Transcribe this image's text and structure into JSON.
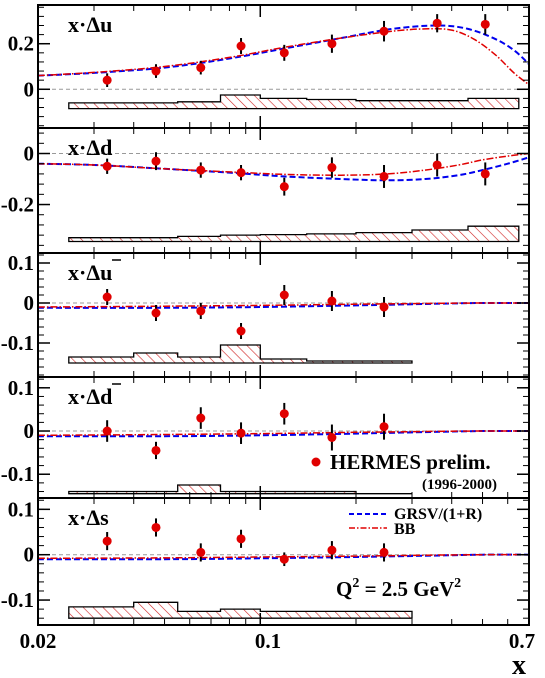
{
  "chart_data": {
    "type": "scatter",
    "x_scale": "log",
    "x_range": [
      0.02,
      0.7
    ],
    "x_ticks": [
      "0.02",
      "0.1",
      "0.7"
    ],
    "xlabel": "x",
    "legend": {
      "data_label": "HERMES prelim.",
      "data_sublabel": "(1996-2000)",
      "grsv_label": "GRSV/(1+R)",
      "bb_label": "BB"
    },
    "annotation": {
      "q2_prefix": "Q",
      "q2_exp": "2",
      "q2_mid": " = 2.5 GeV",
      "q2_exp2": "2"
    },
    "colors": {
      "data": "#e00000",
      "grsv": "#0000ee",
      "bb": "#e00000",
      "band_fill": "#d02020",
      "axis": "#000000"
    },
    "x_points": [
      0.033,
      0.047,
      0.065,
      0.087,
      0.119,
      0.168,
      0.245,
      0.36,
      0.51
    ],
    "panels": [
      {
        "label_main": "x·Δu",
        "label_bar": false,
        "ylim": [
          -0.17,
          0.37
        ],
        "yticks": [
          {
            "v": 0.2,
            "t": "0.2"
          },
          {
            "v": 0,
            "t": "0"
          }
        ],
        "y": [
          0.04,
          0.08,
          0.095,
          0.19,
          0.16,
          0.2,
          0.255,
          0.29,
          0.285
        ],
        "err": [
          0.03,
          0.03,
          0.03,
          0.035,
          0.035,
          0.04,
          0.045,
          0.04,
          0.045
        ],
        "grsv": [
          [
            0.02,
            0.06
          ],
          [
            0.03,
            0.072
          ],
          [
            0.05,
            0.095
          ],
          [
            0.08,
            0.135
          ],
          [
            0.12,
            0.18
          ],
          [
            0.18,
            0.225
          ],
          [
            0.26,
            0.265
          ],
          [
            0.36,
            0.28
          ],
          [
            0.45,
            0.265
          ],
          [
            0.55,
            0.22
          ],
          [
            0.63,
            0.17
          ],
          [
            0.7,
            0.11
          ]
        ],
        "bb": [
          [
            0.02,
            0.06
          ],
          [
            0.03,
            0.074
          ],
          [
            0.05,
            0.1
          ],
          [
            0.08,
            0.14
          ],
          [
            0.12,
            0.185
          ],
          [
            0.18,
            0.225
          ],
          [
            0.26,
            0.255
          ],
          [
            0.33,
            0.265
          ],
          [
            0.4,
            0.26
          ],
          [
            0.47,
            0.22
          ],
          [
            0.55,
            0.15
          ],
          [
            0.63,
            0.07
          ],
          [
            0.7,
            0.02
          ]
        ],
        "band": {
          "base": -0.085,
          "edges": [
            0.025,
            0.04,
            0.055,
            0.075,
            0.1,
            0.14,
            0.2,
            0.3,
            0.45,
            0.65
          ],
          "tops": [
            -0.06,
            -0.06,
            -0.055,
            -0.025,
            -0.04,
            -0.045,
            -0.05,
            -0.05,
            -0.04
          ]
        }
      },
      {
        "label_main": "x·Δd",
        "label_bar": false,
        "ylim": [
          -0.39,
          0.1
        ],
        "yticks": [
          {
            "v": 0,
            "t": "0"
          },
          {
            "v": -0.2,
            "t": "-0.2"
          }
        ],
        "y": [
          -0.05,
          -0.03,
          -0.065,
          -0.075,
          -0.13,
          -0.055,
          -0.09,
          -0.045,
          -0.08
        ],
        "err": [
          0.03,
          0.035,
          0.03,
          0.03,
          0.035,
          0.04,
          0.045,
          0.045,
          0.045
        ],
        "grsv": [
          [
            0.02,
            -0.04
          ],
          [
            0.03,
            -0.045
          ],
          [
            0.05,
            -0.06
          ],
          [
            0.08,
            -0.075
          ],
          [
            0.12,
            -0.09
          ],
          [
            0.18,
            -0.1
          ],
          [
            0.25,
            -0.105
          ],
          [
            0.33,
            -0.1
          ],
          [
            0.42,
            -0.085
          ],
          [
            0.5,
            -0.065
          ],
          [
            0.6,
            -0.04
          ],
          [
            0.7,
            -0.015
          ]
        ],
        "bb": [
          [
            0.02,
            -0.04
          ],
          [
            0.03,
            -0.045
          ],
          [
            0.05,
            -0.06
          ],
          [
            0.08,
            -0.072
          ],
          [
            0.12,
            -0.082
          ],
          [
            0.18,
            -0.085
          ],
          [
            0.25,
            -0.08
          ],
          [
            0.33,
            -0.065
          ],
          [
            0.42,
            -0.045
          ],
          [
            0.5,
            -0.025
          ],
          [
            0.6,
            -0.01
          ],
          [
            0.7,
            -0.0
          ]
        ],
        "band": {
          "base": -0.345,
          "edges": [
            0.025,
            0.04,
            0.055,
            0.075,
            0.1,
            0.14,
            0.2,
            0.3,
            0.45,
            0.65
          ],
          "tops": [
            -0.33,
            -0.33,
            -0.325,
            -0.32,
            -0.318,
            -0.315,
            -0.31,
            -0.3,
            -0.285
          ]
        }
      },
      {
        "label_main": "x·Δu",
        "label_bar": true,
        "ylim": [
          -0.185,
          0.125
        ],
        "yticks": [
          {
            "v": 0.1,
            "t": "0.1"
          },
          {
            "v": 0,
            "t": "0"
          },
          {
            "v": -0.1,
            "t": "-0.1"
          }
        ],
        "y": [
          0.015,
          -0.025,
          -0.02,
          -0.07,
          0.02,
          0.005,
          -0.01
        ],
        "err": [
          0.02,
          0.02,
          0.02,
          0.02,
          0.025,
          0.025,
          0.025
        ],
        "grsv": [
          [
            0.02,
            -0.012
          ],
          [
            0.05,
            -0.012
          ],
          [
            0.1,
            -0.01
          ],
          [
            0.2,
            -0.006
          ],
          [
            0.35,
            -0.002
          ],
          [
            0.5,
            0.0
          ],
          [
            0.7,
            0.0
          ]
        ],
        "bb": [
          [
            0.02,
            -0.01
          ],
          [
            0.05,
            -0.008
          ],
          [
            0.1,
            -0.006
          ],
          [
            0.2,
            -0.003
          ],
          [
            0.35,
            -0.001
          ],
          [
            0.5,
            0.0
          ],
          [
            0.7,
            0.0
          ]
        ],
        "band": {
          "base": -0.15,
          "edges": [
            0.025,
            0.04,
            0.055,
            0.075,
            0.1,
            0.14,
            0.2,
            0.3
          ],
          "tops": [
            -0.135,
            -0.125,
            -0.135,
            -0.105,
            -0.14,
            -0.145,
            -0.145
          ]
        }
      },
      {
        "label_main": "x·Δd",
        "label_bar": true,
        "ylim": [
          -0.155,
          0.125
        ],
        "yticks": [
          {
            "v": 0.1,
            "t": "0.1"
          },
          {
            "v": 0,
            "t": "0"
          },
          {
            "v": -0.1,
            "t": "-0.1"
          }
        ],
        "y": [
          0.0,
          -0.045,
          0.03,
          -0.005,
          0.04,
          -0.015,
          0.01
        ],
        "err": [
          0.025,
          0.02,
          0.025,
          0.025,
          0.025,
          0.03,
          0.03
        ],
        "grsv": [
          [
            0.02,
            -0.012
          ],
          [
            0.05,
            -0.012
          ],
          [
            0.1,
            -0.01
          ],
          [
            0.2,
            -0.006
          ],
          [
            0.35,
            -0.002
          ],
          [
            0.5,
            0.0
          ],
          [
            0.7,
            0.0
          ]
        ],
        "bb": [
          [
            0.02,
            -0.01
          ],
          [
            0.05,
            -0.008
          ],
          [
            0.1,
            -0.006
          ],
          [
            0.2,
            -0.003
          ],
          [
            0.35,
            -0.001
          ],
          [
            0.5,
            0.0
          ],
          [
            0.7,
            0.0
          ]
        ],
        "band": {
          "base": -0.145,
          "edges": [
            0.025,
            0.04,
            0.055,
            0.075,
            0.1,
            0.14,
            0.2,
            0.3
          ],
          "tops": [
            -0.14,
            -0.14,
            -0.125,
            -0.14,
            -0.14,
            -0.14,
            -0.145
          ]
        }
      },
      {
        "label_main": "x·Δs",
        "label_bar": false,
        "ylim": [
          -0.155,
          0.125
        ],
        "yticks": [
          {
            "v": 0.1,
            "t": "0.1"
          },
          {
            "v": 0,
            "t": "0"
          },
          {
            "v": -0.1,
            "t": "-0.1"
          }
        ],
        "y": [
          0.03,
          0.06,
          0.005,
          0.035,
          -0.01,
          0.01,
          0.005
        ],
        "err": [
          0.02,
          0.02,
          0.02,
          0.02,
          0.015,
          0.02,
          0.02
        ],
        "grsv": [
          [
            0.02,
            -0.01
          ],
          [
            0.05,
            -0.01
          ],
          [
            0.1,
            -0.008
          ],
          [
            0.2,
            -0.005
          ],
          [
            0.35,
            -0.002
          ],
          [
            0.5,
            0.0
          ],
          [
            0.7,
            0.0
          ]
        ],
        "bb": [
          [
            0.02,
            -0.008
          ],
          [
            0.05,
            -0.007
          ],
          [
            0.1,
            -0.005
          ],
          [
            0.2,
            -0.003
          ],
          [
            0.35,
            -0.001
          ],
          [
            0.5,
            0.0
          ],
          [
            0.7,
            0.0
          ]
        ],
        "band": {
          "base": -0.14,
          "edges": [
            0.025,
            0.04,
            0.055,
            0.075,
            0.1,
            0.14,
            0.2,
            0.3
          ],
          "tops": [
            -0.115,
            -0.105,
            -0.125,
            -0.12,
            -0.125,
            -0.125,
            -0.125
          ]
        }
      }
    ]
  }
}
